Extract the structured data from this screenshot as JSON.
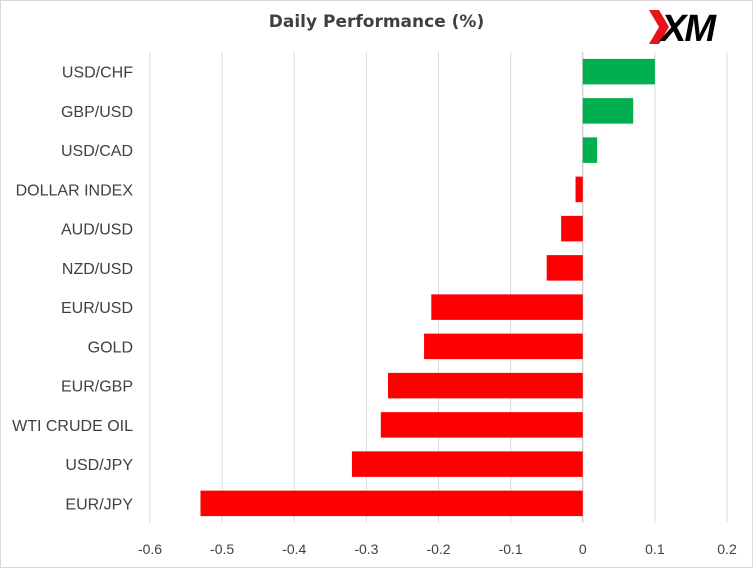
{
  "brand": {
    "logo_text": "XM",
    "logo_mark_color": "#e8121b",
    "logo_text_color": "#000000"
  },
  "chart_data": {
    "type": "bar",
    "orientation": "horizontal",
    "title": "Daily Performance  (%)",
    "xlabel": "",
    "ylabel": "",
    "categories": [
      "USD/CHF",
      "GBP/USD",
      "USD/CAD",
      "DOLLAR INDEX",
      "AUD/USD",
      "NZD/USD",
      "EUR/USD",
      "GOLD",
      "EUR/GBP",
      "WTI CRUDE OIL",
      "USD/JPY",
      "EUR/JPY"
    ],
    "values": [
      0.1,
      0.07,
      0.02,
      -0.01,
      -0.03,
      -0.05,
      -0.21,
      -0.22,
      -0.27,
      -0.28,
      -0.32,
      -0.53
    ],
    "xlim": [
      -0.6,
      0.2
    ],
    "xticks": [
      "-0.6",
      "-0.5",
      "-0.4",
      "-0.3",
      "-0.2",
      "-0.1",
      "0",
      "0.1",
      "0.2"
    ],
    "grid": true,
    "legend": "none",
    "colors": {
      "positive": "#00b050",
      "negative": "#ff0000",
      "grid": "#d9d9d9",
      "zero_axis": "#bfbfbf",
      "text": "#404040"
    }
  }
}
